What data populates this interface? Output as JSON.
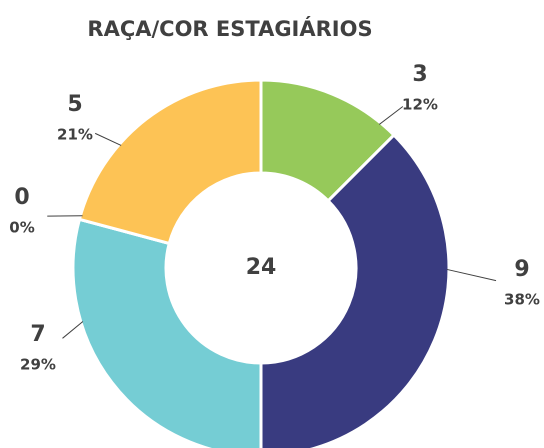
{
  "chart_data": {
    "type": "donut",
    "title": "RAÇA/COR ESTAGIÁRIOS",
    "values": [
      3,
      9,
      7,
      0,
      5
    ],
    "percentages": [
      {
        "value": 12,
        "label": "12%"
      },
      {
        "value": 38,
        "label": "38%"
      },
      {
        "value": 29,
        "label": "29%"
      },
      {
        "value": 0,
        "label": "0%"
      },
      {
        "value": 21,
        "label": "21%"
      }
    ],
    "colors": [
      "#96c95a",
      "#393b80",
      "#75cdd4",
      "#a5a5a5",
      "#fdc355"
    ],
    "total": 24
  }
}
